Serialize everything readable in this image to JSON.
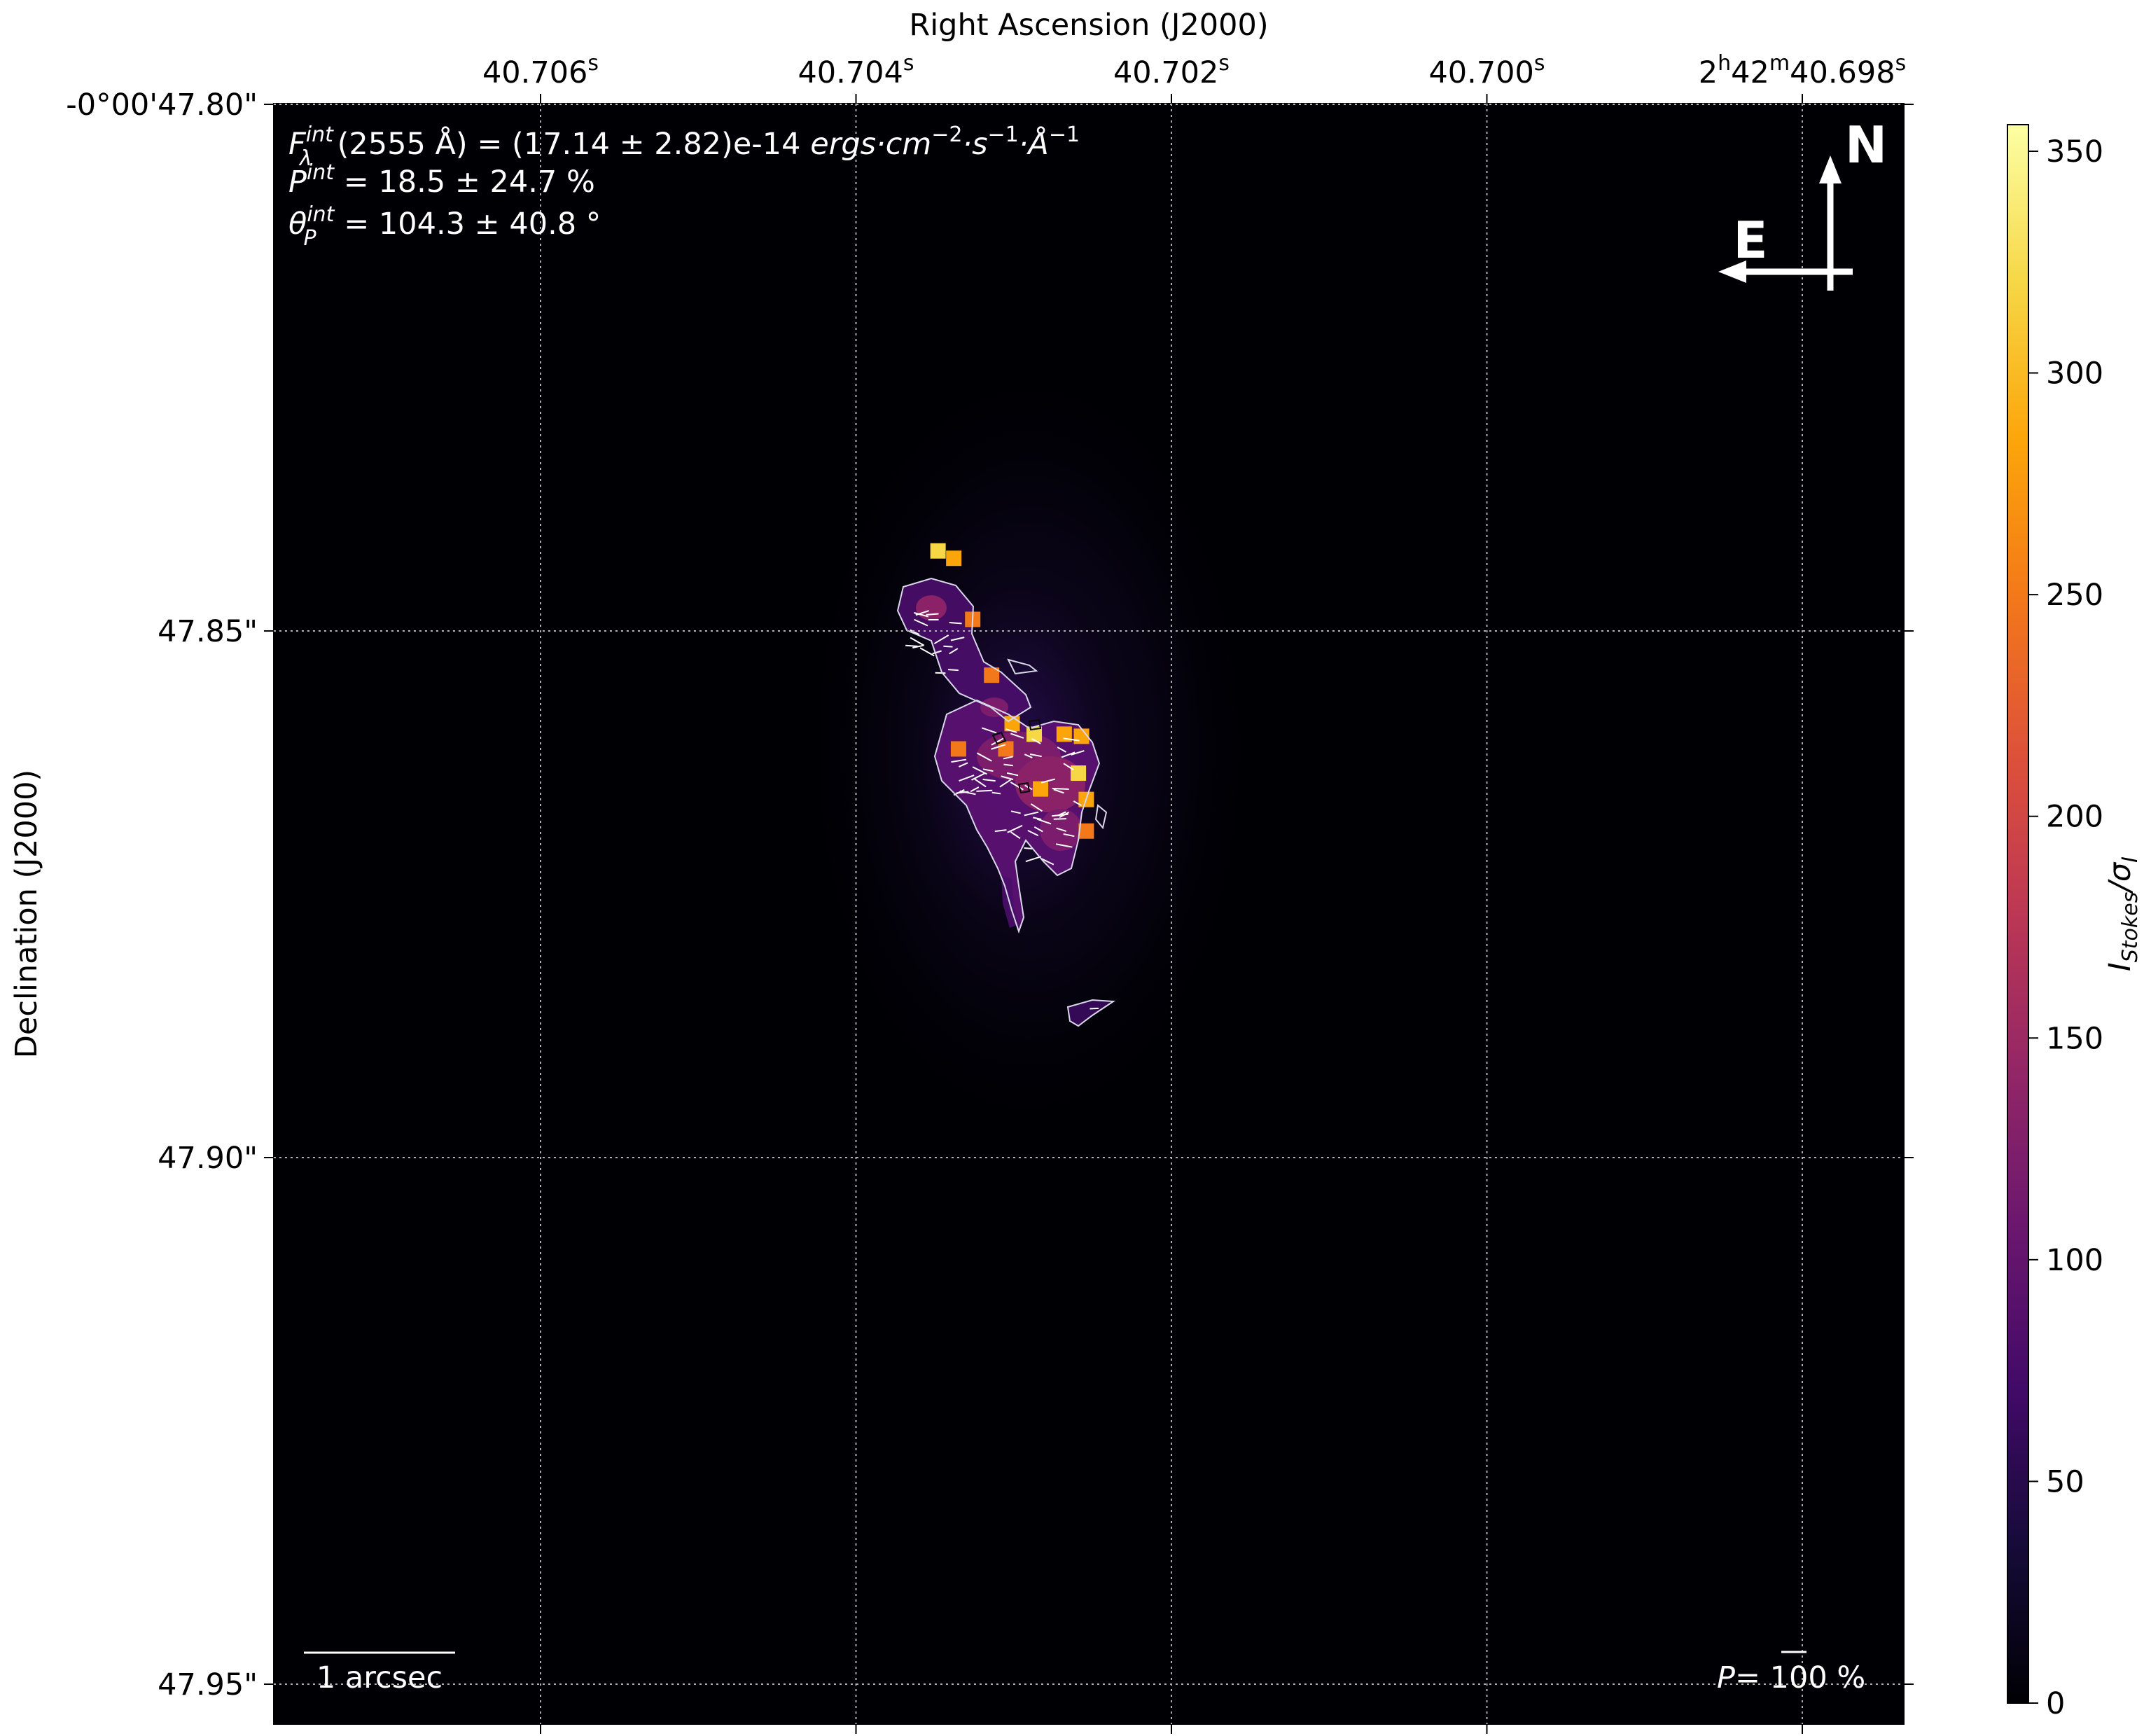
{
  "chart_data": {
    "type": "heatmap",
    "title": "",
    "xlabel": "Right Ascension (J2000)",
    "ylabel": "Declination (J2000)",
    "x_ticks": [
      {
        "value": 40.706,
        "label": "40.706",
        "sup": "s"
      },
      {
        "value": 40.704,
        "label": "40.704",
        "sup": "s"
      },
      {
        "value": 40.702,
        "label": "40.702",
        "sup": "s"
      },
      {
        "value": 40.7,
        "label": "40.700",
        "sup": "s"
      },
      {
        "value": 40.698,
        "label": "2h42m40.698s"
      }
    ],
    "x_label_parts": [
      [
        "40.706",
        "s"
      ],
      [
        "40.704",
        "s"
      ],
      [
        "40.702",
        "s"
      ],
      [
        "40.700",
        "s"
      ],
      [
        "2",
        "h",
        "42",
        "m",
        "40.698",
        "s"
      ]
    ],
    "y_ticks": [
      {
        "value": 47.8,
        "label": "-0°00'47.80\""
      },
      {
        "value": 47.85,
        "label": "47.85\""
      },
      {
        "value": 47.9,
        "label": "47.90\""
      },
      {
        "value": 47.95,
        "label": "47.95\""
      }
    ],
    "colorbar": {
      "label": "I_Stokes/σ_I",
      "label_main": "I",
      "label_sub": "Stokes",
      "label_tail": "/σ",
      "label_tail_sub": "I",
      "colormap": "inferno",
      "range": [
        0,
        356
      ],
      "ticks": [
        0,
        50,
        100,
        150,
        200,
        250,
        300,
        350
      ]
    },
    "annotations": {
      "flux_symbol": "F",
      "flux_sup": "int",
      "flux_sub": "λ",
      "flux_value": "(2555 Å) = (17.14 ± 2.82)e-14 ",
      "flux_units_text": "ergs·cm",
      "flux_units_exp1": "−2",
      "flux_units_s": "·s",
      "flux_units_exp2": "−1",
      "flux_units_A": "·Å",
      "flux_units_exp3": "−1",
      "pol_symbol": "P",
      "pol_sup": "int",
      "pol_value": " = 18.5 ± 24.7 %",
      "angle_symbol": "θ",
      "angle_sub": "P",
      "angle_sup": "int",
      "angle_value": " = 104.3 ± 40.8 °",
      "compass_north": "N",
      "compass_east": "E",
      "scalebar_label": "1 arcsec",
      "pol_scale_symbol": "P",
      "pol_scale_label": "= 100 %"
    },
    "grid": true,
    "grid_style": "dotted",
    "source": {
      "description": "clumpy emission region with polarization vectors and contours",
      "peak_sigma": 356,
      "bright_knots": [
        {
          "ra": 40.70348,
          "dec": 47.8424,
          "snr": 330
        },
        {
          "ra": 40.70338,
          "dec": 47.8431,
          "snr": 270
        },
        {
          "ra": 40.70326,
          "dec": 47.8489,
          "snr": 260
        },
        {
          "ra": 40.70301,
          "dec": 47.8588,
          "snr": 290
        },
        {
          "ra": 40.70287,
          "dec": 47.8598,
          "snr": 320
        },
        {
          "ra": 40.70268,
          "dec": 47.8598,
          "snr": 300
        },
        {
          "ra": 40.70257,
          "dec": 47.86,
          "snr": 290
        },
        {
          "ra": 40.70305,
          "dec": 47.8612,
          "snr": 250
        },
        {
          "ra": 40.70335,
          "dec": 47.8612,
          "snr": 240
        },
        {
          "ra": 40.70259,
          "dec": 47.8635,
          "snr": 310
        },
        {
          "ra": 40.70283,
          "dec": 47.865,
          "snr": 280
        },
        {
          "ra": 40.70254,
          "dec": 47.866,
          "snr": 270
        },
        {
          "ra": 40.70254,
          "dec": 47.869,
          "snr": 260
        },
        {
          "ra": 40.70314,
          "dec": 47.8542,
          "snr": 250
        }
      ]
    }
  }
}
